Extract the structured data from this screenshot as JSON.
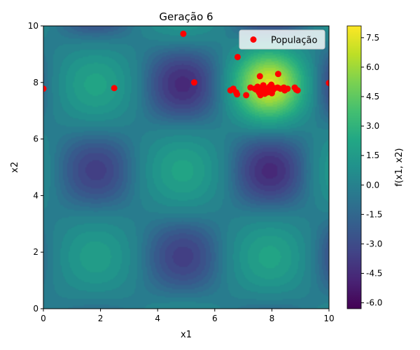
{
  "chart_data": {
    "type": "contour",
    "title": "Geração 6",
    "xlabel": "x1",
    "ylabel": "x2",
    "xlim": [
      0,
      10
    ],
    "ylim": [
      0,
      10
    ],
    "x_ticks": [
      "0",
      "2",
      "4",
      "6",
      "8",
      "10"
    ],
    "y_ticks": [
      "0",
      "2",
      "4",
      "6",
      "8",
      "10"
    ],
    "colorbar": {
      "label": "f(x1, x2)",
      "range": [
        -6.3,
        8.1
      ],
      "ticks": [
        "-6.0",
        "-4.5",
        "-3.0",
        "-1.5",
        "0.0",
        "1.5",
        "3.0",
        "4.5",
        "6.0",
        "7.5"
      ],
      "colormap": "viridis"
    },
    "legend": {
      "position": "top-right",
      "entries": [
        "População"
      ]
    },
    "series": [
      {
        "name": "População",
        "type": "scatter",
        "color": "#ff0000",
        "points": [
          [
            4.9,
            9.72
          ],
          [
            6.8,
            8.9
          ],
          [
            0.0,
            7.78
          ],
          [
            2.48,
            7.8
          ],
          [
            5.28,
            8.0
          ],
          [
            10.0,
            7.98
          ],
          [
            7.58,
            8.22
          ],
          [
            8.22,
            8.3
          ],
          [
            6.55,
            7.72
          ],
          [
            6.65,
            7.78
          ],
          [
            6.75,
            7.65
          ],
          [
            6.78,
            7.58
          ],
          [
            7.1,
            7.55
          ],
          [
            7.25,
            7.82
          ],
          [
            7.45,
            7.75
          ],
          [
            7.5,
            7.85
          ],
          [
            7.55,
            7.65
          ],
          [
            7.6,
            7.55
          ],
          [
            7.65,
            7.8
          ],
          [
            7.7,
            7.9
          ],
          [
            7.72,
            7.7
          ],
          [
            7.75,
            7.6
          ],
          [
            7.8,
            7.78
          ],
          [
            7.85,
            7.65
          ],
          [
            7.88,
            7.72
          ],
          [
            7.92,
            7.85
          ],
          [
            7.95,
            7.7
          ],
          [
            8.0,
            7.62
          ],
          [
            8.05,
            7.75
          ],
          [
            8.1,
            7.8
          ],
          [
            8.2,
            7.82
          ],
          [
            8.3,
            7.78
          ],
          [
            8.42,
            7.82
          ],
          [
            8.45,
            7.72
          ],
          [
            8.8,
            7.82
          ],
          [
            8.85,
            7.75
          ],
          [
            8.9,
            7.72
          ],
          [
            8.55,
            7.78
          ],
          [
            7.4,
            7.78
          ],
          [
            7.98,
            7.92
          ]
        ]
      }
    ]
  }
}
